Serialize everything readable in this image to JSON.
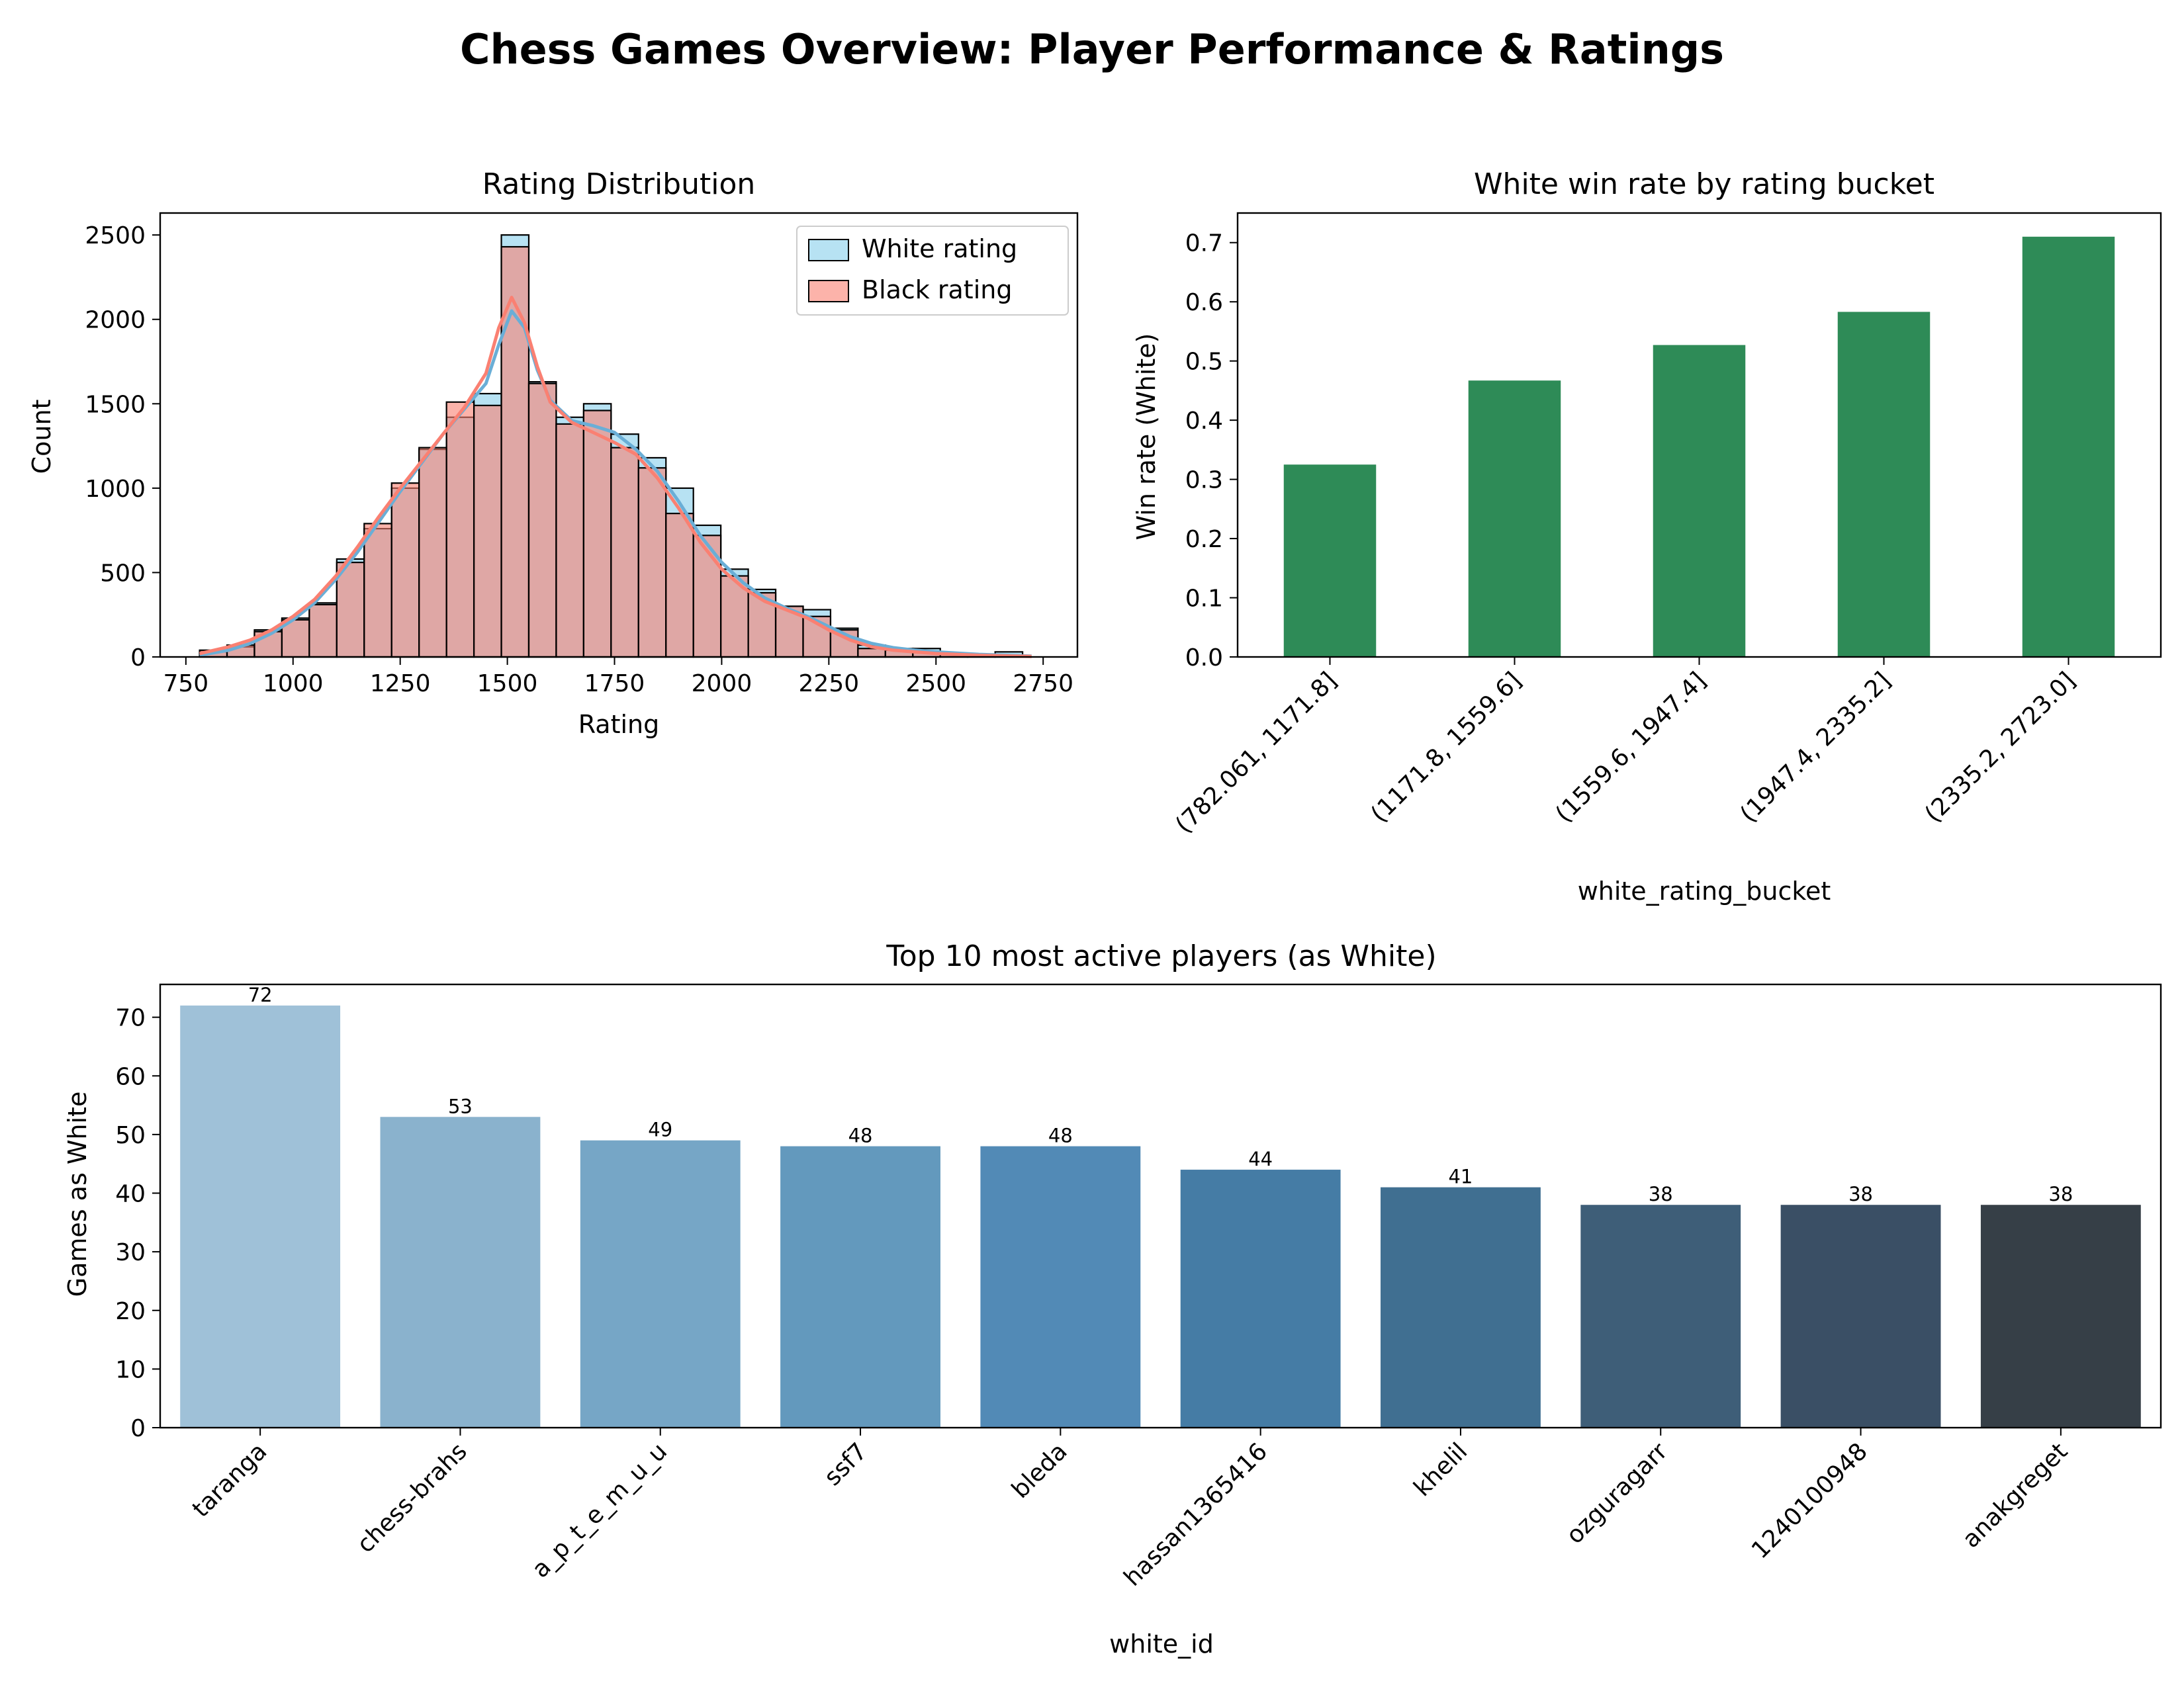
{
  "figure": {
    "title": "Chess Games Overview: Player Performance & Ratings"
  },
  "chart_data": [
    {
      "type": "histogram",
      "title": "Rating Distribution",
      "xlabel": "Rating",
      "ylabel": "Count",
      "xlim": [
        690,
        2830
      ],
      "ylim": [
        0,
        2630
      ],
      "xticks": [
        750,
        1000,
        1250,
        1500,
        1750,
        2000,
        2250,
        2500,
        2750
      ],
      "yticks": [
        0,
        500,
        1000,
        1500,
        2000,
        2500
      ],
      "bin_width": 64,
      "bin_start": 782,
      "bins": [
        782,
        846,
        910,
        974,
        1038,
        1102,
        1166,
        1230,
        1294,
        1358,
        1422,
        1486,
        1550,
        1614,
        1678,
        1742,
        1806,
        1870,
        1934,
        1998,
        2062,
        2126,
        2190,
        2254,
        2318,
        2382,
        2446,
        2510,
        2574,
        2638
      ],
      "series": [
        {
          "name": "White rating",
          "color": "#87ceeb",
          "values": [
            30,
            60,
            160,
            230,
            320,
            580,
            760,
            1000,
            1230,
            1420,
            1560,
            2500,
            1630,
            1420,
            1500,
            1320,
            1180,
            1000,
            780,
            520,
            400,
            300,
            280,
            170,
            70,
            50,
            50,
            20,
            10,
            30
          ]
        },
        {
          "name": "Black rating",
          "color": "#fa8072",
          "values": [
            40,
            70,
            150,
            220,
            310,
            560,
            790,
            1030,
            1240,
            1510,
            1490,
            2430,
            1620,
            1380,
            1460,
            1240,
            1120,
            850,
            720,
            480,
            380,
            300,
            240,
            160,
            50,
            40,
            30,
            20,
            10,
            10
          ]
        }
      ],
      "kde": [
        {
          "name": "White rating",
          "color": "#6aaed6",
          "x": [
            782,
            850,
            900,
            950,
            1000,
            1050,
            1100,
            1150,
            1200,
            1250,
            1300,
            1350,
            1400,
            1450,
            1480,
            1510,
            1540,
            1570,
            1600,
            1650,
            1700,
            1750,
            1800,
            1850,
            1900,
            1950,
            2000,
            2050,
            2100,
            2150,
            2200,
            2250,
            2300,
            2350,
            2400,
            2450,
            2500,
            2600,
            2723
          ],
          "y": [
            10,
            40,
            80,
            140,
            220,
            320,
            460,
            620,
            800,
            980,
            1150,
            1320,
            1470,
            1620,
            1850,
            2050,
            1950,
            1700,
            1520,
            1400,
            1370,
            1330,
            1230,
            1100,
            920,
            720,
            560,
            440,
            350,
            290,
            240,
            180,
            120,
            80,
            55,
            40,
            30,
            15,
            5
          ]
        },
        {
          "name": "Black rating",
          "color": "#fa8072",
          "x": [
            782,
            850,
            900,
            950,
            1000,
            1050,
            1100,
            1150,
            1200,
            1250,
            1300,
            1350,
            1400,
            1450,
            1480,
            1510,
            1540,
            1570,
            1600,
            1650,
            1700,
            1750,
            1800,
            1850,
            1900,
            1950,
            2000,
            2050,
            2100,
            2150,
            2200,
            2250,
            2300,
            2350,
            2400,
            2450,
            2500,
            2600,
            2723
          ],
          "y": [
            20,
            60,
            100,
            160,
            240,
            340,
            480,
            650,
            830,
            1000,
            1160,
            1320,
            1480,
            1680,
            1950,
            2130,
            1980,
            1720,
            1510,
            1390,
            1330,
            1270,
            1200,
            1060,
            880,
            680,
            520,
            410,
            330,
            280,
            230,
            160,
            100,
            60,
            40,
            30,
            20,
            10,
            3
          ]
        }
      ],
      "legend": "top-right"
    },
    {
      "type": "bar",
      "title": "White win rate by rating bucket",
      "xlabel": "white_rating_bucket",
      "ylabel": "Win rate (White)",
      "categories": [
        "(782.061, 1171.8]",
        "(1171.8, 1559.6]",
        "(1559.6, 1947.4]",
        "(1947.4, 2335.2]",
        "(2335.2, 2723.0]"
      ],
      "values": [
        0.325,
        0.467,
        0.527,
        0.583,
        0.71
      ],
      "ylim": [
        0,
        0.75
      ],
      "yticks": [
        0.0,
        0.1,
        0.2,
        0.3,
        0.4,
        0.5,
        0.6,
        0.7
      ],
      "color": "#2e8b57"
    },
    {
      "type": "bar",
      "title": "Top 10 most active players (as White)",
      "xlabel": "white_id",
      "ylabel": "Games as White",
      "categories": [
        "taranga",
        "chess-brahs",
        "a_p_t_e_m_u_u",
        "ssf7",
        "bleda",
        "hassan1365416",
        "khelil",
        "ozguragarr",
        "1240100948",
        "anakgreget"
      ],
      "values": [
        72,
        53,
        49,
        48,
        48,
        44,
        41,
        38,
        38,
        38
      ],
      "value_labels": [
        "72",
        "53",
        "49",
        "48",
        "48",
        "44",
        "41",
        "38",
        "38",
        "38"
      ],
      "ylim": [
        0,
        75.6
      ],
      "yticks": [
        0,
        10,
        20,
        30,
        40,
        50,
        60,
        70
      ],
      "colors": [
        "#9fc1d8",
        "#8ab2cd",
        "#76a6c6",
        "#6399bd",
        "#528ab6",
        "#457ca5",
        "#406f91",
        "#3e5e78",
        "#3a4f65",
        "#363f47"
      ]
    }
  ]
}
